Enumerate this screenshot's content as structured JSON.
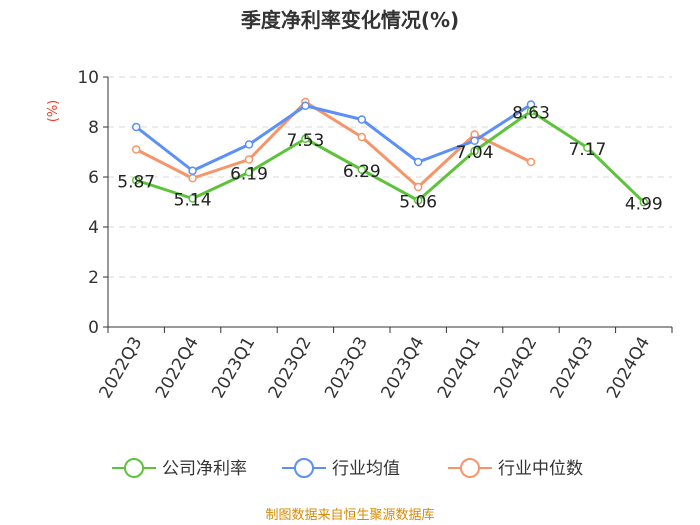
{
  "chart_data": {
    "type": "line",
    "title": "季度净利率变化情况(%)",
    "ylabel": "(%)",
    "xlabel": "",
    "ylim": [
      0,
      10
    ],
    "yticks": [
      0,
      2,
      4,
      6,
      8,
      10
    ],
    "grid": true,
    "legend_position": "bottom",
    "categories": [
      "2022Q3",
      "2022Q4",
      "2023Q1",
      "2023Q2",
      "2023Q3",
      "2023Q4",
      "2024Q1",
      "2024Q2",
      "2024Q3",
      "2024Q4"
    ],
    "series": [
      {
        "name": "公司净利率",
        "color": "#5cc33a",
        "values": [
          5.87,
          5.14,
          6.19,
          7.53,
          6.29,
          5.06,
          7.04,
          8.63,
          7.17,
          4.99
        ],
        "show_labels": true
      },
      {
        "name": "行业均值",
        "color": "#5b8ff9",
        "values": [
          8.0,
          6.25,
          7.3,
          8.85,
          8.3,
          6.6,
          7.45,
          8.9,
          null,
          null
        ],
        "show_labels": false
      },
      {
        "name": "行业中位数",
        "color": "#f7956a",
        "values": [
          7.1,
          5.95,
          6.7,
          9.0,
          7.6,
          5.6,
          7.7,
          6.6,
          null,
          null
        ],
        "show_labels": false
      }
    ]
  },
  "source": "制图数据来自恒生聚源数据库"
}
